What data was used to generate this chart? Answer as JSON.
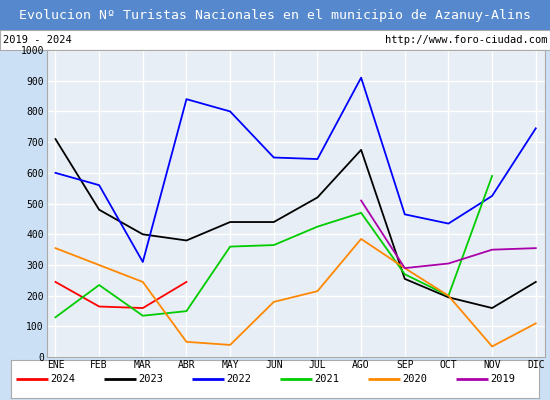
{
  "title": "Evolucion Nº Turistas Nacionales en el municipio de Azanuy-Alins",
  "subtitle_left": "2019 - 2024",
  "subtitle_right": "http://www.foro-ciudad.com",
  "months": [
    "ENE",
    "FEB",
    "MAR",
    "ABR",
    "MAY",
    "JUN",
    "JUL",
    "AGO",
    "SEP",
    "OCT",
    "NOV",
    "DIC"
  ],
  "series": {
    "2024": {
      "color": "#ff0000",
      "values": [
        245,
        165,
        160,
        245,
        null,
        null,
        null,
        null,
        null,
        null,
        null,
        null
      ]
    },
    "2023": {
      "color": "#000000",
      "values": [
        710,
        480,
        400,
        380,
        440,
        440,
        520,
        675,
        255,
        195,
        160,
        245
      ]
    },
    "2022": {
      "color": "#0000ff",
      "values": [
        600,
        560,
        310,
        840,
        800,
        650,
        645,
        910,
        465,
        435,
        525,
        745
      ]
    },
    "2021": {
      "color": "#00cc00",
      "values": [
        130,
        235,
        135,
        150,
        360,
        365,
        425,
        470,
        270,
        200,
        590,
        null
      ]
    },
    "2020": {
      "color": "#ff8800",
      "values": [
        355,
        300,
        245,
        50,
        40,
        180,
        215,
        385,
        290,
        200,
        35,
        110
      ]
    },
    "2019": {
      "color": "#aa00aa",
      "values": [
        null,
        null,
        null,
        null,
        null,
        null,
        null,
        510,
        290,
        305,
        350,
        355
      ]
    }
  },
  "ylim": [
    0,
    1000
  ],
  "yticks": [
    0,
    100,
    200,
    300,
    400,
    500,
    600,
    700,
    800,
    900,
    1000
  ],
  "background_color": "#cce0f5",
  "plot_background": "#e8eef5",
  "title_bg": "#5588cc",
  "title_color": "#ffffff",
  "title_fontsize": 9.5,
  "grid_color": "#ffffff",
  "figsize": [
    5.5,
    4.0
  ],
  "dpi": 100
}
